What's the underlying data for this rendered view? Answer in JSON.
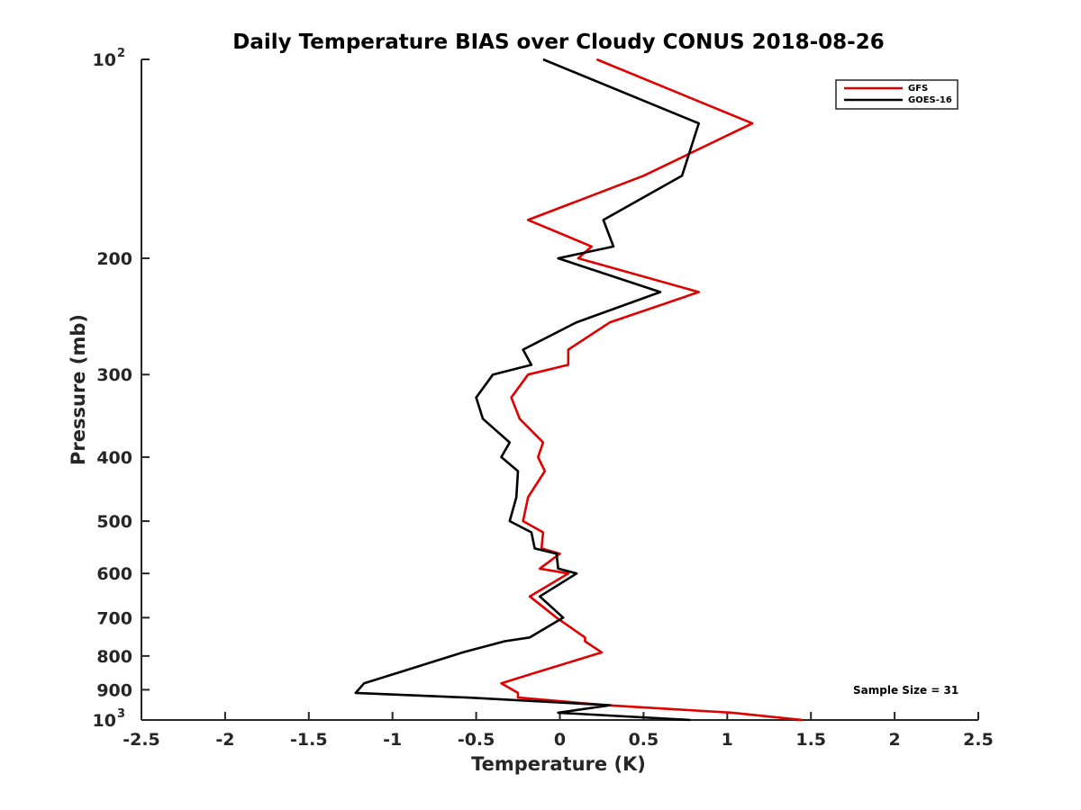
{
  "chart_data": {
    "type": "line",
    "title": "Daily Temperature BIAS over Cloudy CONUS 2018-08-26",
    "xlabel": "Temperature (K)",
    "ylabel": "Pressure (mb)",
    "xlim": [
      -2.5,
      2.5
    ],
    "ylim": [
      100,
      1000
    ],
    "y_scale": "log",
    "y_reversed": true,
    "grid": false,
    "legend_position": "top-right",
    "x_ticks": [
      "-2.5",
      "-2",
      "-1.5",
      "-1",
      "-0.5",
      "0",
      "0.5",
      "1",
      "1.5",
      "2",
      "2.5"
    ],
    "y_tick_values": [
      100,
      200,
      300,
      400,
      500,
      600,
      700,
      800,
      900,
      1000
    ],
    "y_ticks_plain": [
      "200",
      "300",
      "400",
      "500",
      "600",
      "700",
      "800",
      "900"
    ],
    "y_tick_top": {
      "base": "10",
      "exp": "2"
    },
    "y_tick_bottom": {
      "base": "10",
      "exp": "3"
    },
    "annotation": "Sample Size = 31",
    "series": [
      {
        "name": "GFS",
        "color": "#e00000",
        "points": [
          [
            0.22,
            100
          ],
          [
            1.15,
            125
          ],
          [
            0.5,
            150
          ],
          [
            -0.19,
            175
          ],
          [
            0.19,
            192
          ],
          [
            0.11,
            200
          ],
          [
            0.83,
            225
          ],
          [
            0.3,
            250
          ],
          [
            0.05,
            275
          ],
          [
            0.05,
            290
          ],
          [
            -0.19,
            300
          ],
          [
            -0.29,
            325
          ],
          [
            -0.24,
            350
          ],
          [
            -0.1,
            380
          ],
          [
            -0.13,
            400
          ],
          [
            -0.09,
            420
          ],
          [
            -0.19,
            460
          ],
          [
            -0.22,
            500
          ],
          [
            -0.1,
            520
          ],
          [
            -0.11,
            550
          ],
          [
            0.0,
            560
          ],
          [
            -0.12,
            590
          ],
          [
            0.05,
            600
          ],
          [
            -0.18,
            650
          ],
          [
            -0.02,
            700
          ],
          [
            0.15,
            750
          ],
          [
            0.15,
            760
          ],
          [
            0.25,
            790
          ],
          [
            -0.16,
            850
          ],
          [
            -0.35,
            880
          ],
          [
            -0.25,
            910
          ],
          [
            -0.25,
            925
          ],
          [
            0.28,
            950
          ],
          [
            1.03,
            975
          ],
          [
            1.45,
            1000
          ]
        ]
      },
      {
        "name": "GOES-16",
        "color": "#000000",
        "points": [
          [
            -0.1,
            100
          ],
          [
            0.83,
            125
          ],
          [
            0.73,
            150
          ],
          [
            0.26,
            175
          ],
          [
            0.32,
            192
          ],
          [
            -0.01,
            200
          ],
          [
            0.6,
            225
          ],
          [
            0.1,
            250
          ],
          [
            -0.22,
            275
          ],
          [
            -0.17,
            290
          ],
          [
            -0.4,
            300
          ],
          [
            -0.5,
            325
          ],
          [
            -0.46,
            350
          ],
          [
            -0.3,
            380
          ],
          [
            -0.35,
            400
          ],
          [
            -0.25,
            420
          ],
          [
            -0.26,
            460
          ],
          [
            -0.3,
            500
          ],
          [
            -0.17,
            520
          ],
          [
            -0.15,
            550
          ],
          [
            -0.02,
            560
          ],
          [
            -0.01,
            590
          ],
          [
            0.1,
            600
          ],
          [
            -0.12,
            650
          ],
          [
            0.02,
            700
          ],
          [
            -0.18,
            750
          ],
          [
            -0.33,
            760
          ],
          [
            -0.58,
            790
          ],
          [
            -0.98,
            850
          ],
          [
            -1.17,
            880
          ],
          [
            -1.22,
            910
          ],
          [
            -0.55,
            925
          ],
          [
            0.3,
            950
          ],
          [
            -0.01,
            975
          ],
          [
            0.78,
            1000
          ]
        ]
      }
    ]
  }
}
